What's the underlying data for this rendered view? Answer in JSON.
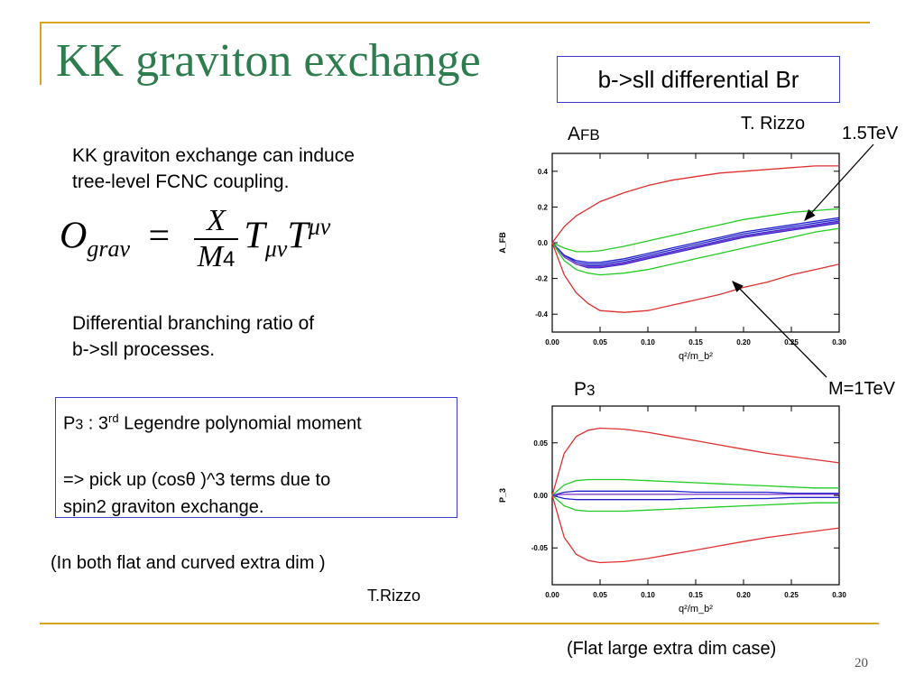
{
  "slide": {
    "title": "KK graviton exchange",
    "header_box": "b->sll differential Br",
    "intro_line1": "KK graviton exchange can induce",
    "intro_line2": "tree-level FCNC coupling.",
    "equation_lhs": "O",
    "equation_lhs_sub": "grav",
    "equation_equals": "=",
    "equation_num": "X",
    "equation_den": "M",
    "equation_den_sup": "4",
    "equation_rhs1": "T",
    "equation_rhs1_sub": "μν",
    "equation_rhs2": "T",
    "equation_rhs2_sup": "μν",
    "diff_line1": "Differential branching ratio of",
    "diff_line2": "b->sll processes.",
    "box_line1_a": "P",
    "box_line1_b": "3",
    "box_line1_c": " : 3",
    "box_line1_d": "rd",
    "box_line1_e": " Legendre polynomial moment",
    "box_line2": "=> pick up (cosθ )^3 terms due to",
    "box_line3": "spin2 graviton exchange.",
    "both_note": "(In both flat and curved extra dim )",
    "credit_left": "T.Rizzo",
    "flat_note": "(Flat large extra dim case)",
    "page_number": "20"
  },
  "annotations": {
    "afb_label_a": "A",
    "afb_label_b": "FB",
    "rizzo_top": "T. Rizzo",
    "tev15": "1.5TeV",
    "p3_label_a": "P",
    "p3_label_b": "3",
    "m1tev": "M=1TeV"
  },
  "colors": {
    "title": "#2e7d4f",
    "accent_rule": "#d9a521",
    "box_border": "#3b3bd0",
    "red": "#e03030",
    "green": "#22cc22",
    "blue": "#2222cc",
    "purple": "#8844cc"
  },
  "chart_data": [
    {
      "type": "line",
      "ylabel": "A_FB",
      "xlabel": "q²/m_b²",
      "xlim": [
        0.0,
        0.3
      ],
      "ylim": [
        -0.5,
        0.5
      ],
      "xticks": [
        "0.00",
        "0.05",
        "0.10",
        "0.15",
        "0.20",
        "0.25",
        "0.30"
      ],
      "yticks": [
        "-0.4",
        "-0.2",
        "0.0",
        "0.2",
        "0.4"
      ],
      "x": [
        0.0,
        0.0125,
        0.025,
        0.0375,
        0.05,
        0.075,
        0.1,
        0.125,
        0.15,
        0.175,
        0.2,
        0.225,
        0.25,
        0.275,
        0.3
      ],
      "series": [
        {
          "color": "red",
          "values": [
            0.0,
            0.09,
            0.15,
            0.19,
            0.23,
            0.28,
            0.32,
            0.35,
            0.37,
            0.39,
            0.4,
            0.41,
            0.42,
            0.43,
            0.43
          ]
        },
        {
          "color": "green",
          "values": [
            0.0,
            -0.03,
            -0.05,
            -0.05,
            -0.045,
            -0.02,
            0.01,
            0.04,
            0.07,
            0.1,
            0.13,
            0.15,
            0.17,
            0.18,
            0.19
          ]
        },
        {
          "color": "blue",
          "values": [
            0.0,
            -0.07,
            -0.1,
            -0.11,
            -0.11,
            -0.09,
            -0.06,
            -0.03,
            0.0,
            0.03,
            0.06,
            0.08,
            0.1,
            0.12,
            0.14
          ]
        },
        {
          "color": "blue",
          "values": [
            0.0,
            -0.07,
            -0.11,
            -0.12,
            -0.12,
            -0.1,
            -0.07,
            -0.04,
            -0.01,
            0.02,
            0.05,
            0.07,
            0.09,
            0.11,
            0.13
          ]
        },
        {
          "color": "blue",
          "values": [
            0.0,
            -0.08,
            -0.12,
            -0.13,
            -0.13,
            -0.11,
            -0.08,
            -0.05,
            -0.02,
            0.01,
            0.04,
            0.06,
            0.08,
            0.1,
            0.12
          ]
        },
        {
          "color": "blue",
          "values": [
            0.0,
            -0.08,
            -0.12,
            -0.14,
            -0.14,
            -0.12,
            -0.09,
            -0.06,
            -0.03,
            0.0,
            0.03,
            0.05,
            0.07,
            0.09,
            0.11
          ]
        },
        {
          "color": "purple",
          "values": [
            0.0,
            -0.08,
            -0.12,
            -0.135,
            -0.135,
            -0.115,
            -0.085,
            -0.055,
            -0.025,
            0.005,
            0.035,
            0.055,
            0.075,
            0.095,
            0.115
          ]
        },
        {
          "color": "green",
          "values": [
            0.0,
            -0.1,
            -0.15,
            -0.17,
            -0.18,
            -0.17,
            -0.15,
            -0.12,
            -0.09,
            -0.06,
            -0.03,
            0.0,
            0.03,
            0.06,
            0.08
          ]
        },
        {
          "color": "red",
          "values": [
            0.0,
            -0.18,
            -0.28,
            -0.34,
            -0.38,
            -0.39,
            -0.38,
            -0.35,
            -0.32,
            -0.29,
            -0.25,
            -0.22,
            -0.18,
            -0.15,
            -0.12
          ]
        }
      ]
    },
    {
      "type": "line",
      "ylabel": "P_3",
      "xlabel": "q²/m_b²",
      "xlim": [
        0.0,
        0.3
      ],
      "ylim": [
        -0.085,
        0.085
      ],
      "xticks": [
        "0.00",
        "0.05",
        "0.10",
        "0.15",
        "0.20",
        "0.25",
        "0.30"
      ],
      "yticks": [
        "-0.05",
        "0.00",
        "0.05"
      ],
      "x": [
        0.0,
        0.0125,
        0.025,
        0.0375,
        0.05,
        0.075,
        0.1,
        0.125,
        0.15,
        0.175,
        0.2,
        0.225,
        0.25,
        0.275,
        0.3
      ],
      "series": [
        {
          "color": "red",
          "values": [
            0.0,
            0.04,
            0.056,
            0.062,
            0.064,
            0.063,
            0.06,
            0.056,
            0.052,
            0.048,
            0.044,
            0.04,
            0.037,
            0.034,
            0.031
          ]
        },
        {
          "color": "green",
          "values": [
            0.0,
            0.01,
            0.014,
            0.015,
            0.015,
            0.015,
            0.014,
            0.013,
            0.012,
            0.011,
            0.01,
            0.009,
            0.008,
            0.007,
            0.007
          ]
        },
        {
          "color": "blue",
          "values": [
            0.0,
            0.003,
            0.004,
            0.004,
            0.004,
            0.004,
            0.004,
            0.004,
            0.003,
            0.003,
            0.003,
            0.003,
            0.002,
            0.002,
            0.002
          ]
        },
        {
          "color": "purple",
          "values": [
            0.0,
            0.001,
            0.001,
            0.001,
            0.001,
            0.001,
            0.001,
            0.001,
            0.001,
            0.001,
            0.001,
            0.001,
            0.001,
            0.001,
            0.001
          ]
        },
        {
          "color": "blue",
          "values": [
            0.0,
            -0.003,
            -0.004,
            -0.004,
            -0.004,
            -0.004,
            -0.004,
            -0.004,
            -0.003,
            -0.003,
            -0.003,
            -0.003,
            -0.002,
            -0.002,
            -0.002
          ]
        },
        {
          "color": "green",
          "values": [
            0.0,
            -0.01,
            -0.014,
            -0.015,
            -0.015,
            -0.015,
            -0.014,
            -0.013,
            -0.012,
            -0.011,
            -0.01,
            -0.009,
            -0.008,
            -0.007,
            -0.007
          ]
        },
        {
          "color": "red",
          "values": [
            0.0,
            -0.04,
            -0.056,
            -0.062,
            -0.064,
            -0.063,
            -0.06,
            -0.056,
            -0.052,
            -0.048,
            -0.044,
            -0.04,
            -0.037,
            -0.034,
            -0.031
          ]
        }
      ]
    }
  ]
}
